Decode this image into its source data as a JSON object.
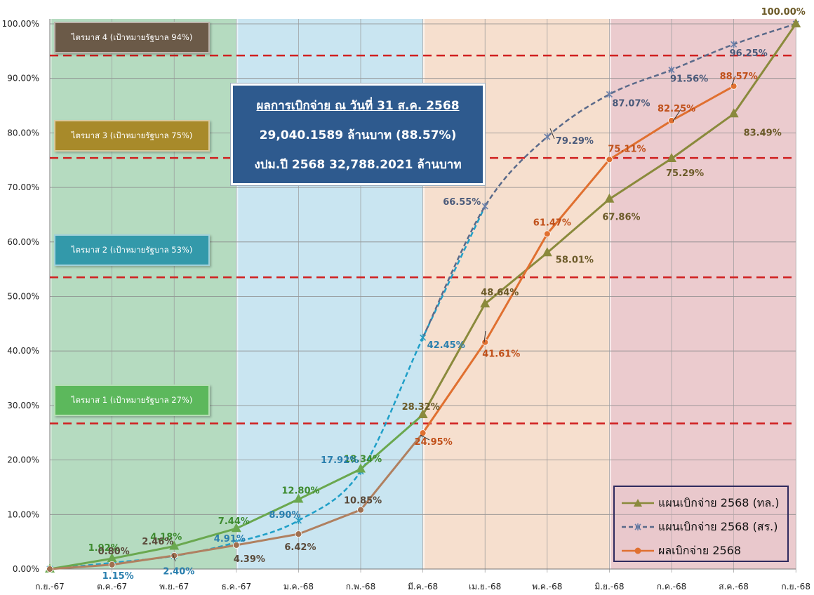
{
  "chart_data": {
    "type": "line",
    "categories": [
      "ก.ย.-67",
      "ต.ค.-67",
      "พ.ย.-67",
      "ธ.ค.-67",
      "ม.ค.-68",
      "ก.พ.-68",
      "มี.ค.-68",
      "เม.ย.-68",
      "พ.ค.-68",
      "มิ.ย.-68",
      "ก.ค.-68",
      "ส.ค.-68",
      "ก.ย.-68"
    ],
    "ylim": [
      0,
      100
    ],
    "yticks": [
      "0.00%",
      "10.00%",
      "20.00%",
      "30.00%",
      "40.00%",
      "50.00%",
      "60.00%",
      "70.00%",
      "80.00%",
      "90.00%",
      "100.00%"
    ],
    "grid": true,
    "legend_position": "bottom-right",
    "series": [
      {
        "name": "แผนเบิกจ่าย 2568 (ทล.)",
        "color": "#8a8a3c",
        "marker": "triangle",
        "values": [
          0,
          1.92,
          4.18,
          7.44,
          12.8,
          18.34,
          28.32,
          48.64,
          58.01,
          67.86,
          75.29,
          83.49,
          100.0
        ],
        "labels": [
          "",
          "1.92%",
          "4.18%",
          "7.44%",
          "12.80%",
          "18.34%",
          "28.32%",
          "48.64%",
          "58.01%",
          "67.86%",
          "75.29%",
          "83.49%",
          "100.00%"
        ]
      },
      {
        "name": "แผนเบิกจ่าย 2568 (สร.)",
        "color": "#1f8fb8",
        "marker": "star",
        "values": [
          0,
          1.15,
          2.4,
          4.91,
          8.9,
          17.92,
          42.45,
          66.55,
          79.29,
          87.07,
          91.56,
          96.25,
          100.0
        ],
        "labels": [
          "",
          "1.15%",
          "2.40%",
          "4.91%",
          "8.90%",
          "17.92%",
          "42.45%",
          "66.55%",
          "79.29%",
          "87.07%",
          "91.56%",
          "96.25%",
          ""
        ]
      },
      {
        "name": "ผลเบิกจ่าย 2568",
        "color": "#e07030",
        "marker": "circle",
        "values": [
          0,
          0.8,
          2.46,
          4.39,
          6.42,
          10.85,
          24.95,
          41.61,
          61.47,
          75.11,
          82.25,
          88.57,
          null
        ],
        "labels": [
          "",
          "0.80%",
          "2.46%",
          "4.39%",
          "6.42%",
          "10.85%",
          "24.95%",
          "41.61%",
          "61.47%",
          "75.11%",
          "82.25%",
          "88.57%",
          ""
        ]
      }
    ],
    "target_lines": [
      26.7,
      53.5,
      75.4,
      94.2
    ],
    "quarter_bands": [
      {
        "label": "ไตรมาส 1 (เป้าหมายรัฐบาล 27%)",
        "from": 0,
        "to": 3,
        "band_color": "#a8d5b5",
        "label_color": "#5cb85c"
      },
      {
        "label": "ไตรมาส 2 (เป้าหมายรัฐบาล 53%)",
        "from": 3,
        "to": 6,
        "band_color": "#bfe0ee",
        "label_color": "#3399aa"
      },
      {
        "label": "ไตรมาส 3 (เป้าหมายรัฐบาล 75%)",
        "from": 6,
        "to": 9,
        "band_color": "#f4d9c5",
        "label_color": "#a88a2a"
      },
      {
        "label": "ไตรมาส 4 (เป้าหมายรัฐบาล 94%)",
        "from": 9,
        "to": 12,
        "band_color": "#e8c2c6",
        "label_color": "#6b5a48"
      }
    ]
  },
  "info_box": {
    "line1": "ผลการเบิกจ่าย ณ วันที่ 31 ส.ค. 2568",
    "line2": "29,040.1589 ล้านบาท  (88.57%)",
    "line3": "งปม.ปี 2568  32,788.2021 ล้านบาท",
    "background": "#2e5a8e"
  }
}
